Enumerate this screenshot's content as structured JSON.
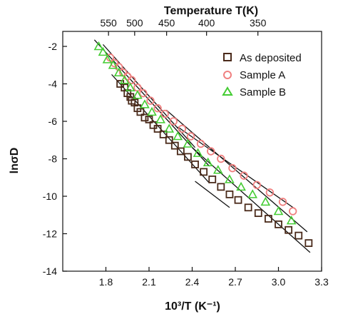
{
  "chart_data": {
    "type": "scatter",
    "title": "",
    "xlabel": "10³/T (K⁻¹)",
    "ylabel": "lnσD",
    "top_xlabel": "Temperature T(K)",
    "xlim": [
      1.5,
      3.3
    ],
    "ylim": [
      -14,
      -1.2
    ],
    "x_ticks": [
      1.8,
      2.1,
      2.4,
      2.7,
      3.0,
      3.3
    ],
    "x_tick_labels": [
      "1.8",
      "2.1",
      "2.4",
      "2.7",
      "3.0",
      "3.3"
    ],
    "y_ticks": [
      -2,
      -4,
      -6,
      -8,
      -10,
      -12,
      -14
    ],
    "y_tick_labels": [
      "-2",
      "-4",
      "-6",
      "-8",
      "-10",
      "-12",
      "-14"
    ],
    "top_ticks": [
      550,
      500,
      450,
      400,
      350
    ],
    "top_tick_labels": [
      "550",
      "500",
      "450",
      "400",
      "350"
    ],
    "legend_position": "top-right",
    "series": [
      {
        "name": "As deposited",
        "marker": "square",
        "color": "#4a2a1a",
        "x": [
          1.9,
          1.93,
          1.95,
          1.97,
          1.98,
          2.0,
          2.02,
          2.04,
          2.07,
          2.1,
          2.13,
          2.16,
          2.2,
          2.24,
          2.28,
          2.32,
          2.37,
          2.42,
          2.48,
          2.54,
          2.6,
          2.66,
          2.72,
          2.79,
          2.86,
          2.93,
          3.0,
          3.07,
          3.14,
          3.21
        ],
        "y": [
          -4.0,
          -4.2,
          -4.5,
          -4.7,
          -4.9,
          -5.0,
          -5.3,
          -5.5,
          -5.8,
          -5.9,
          -6.2,
          -6.4,
          -6.7,
          -7.0,
          -7.3,
          -7.6,
          -7.9,
          -8.3,
          -8.7,
          -9.1,
          -9.5,
          -9.9,
          -10.2,
          -10.6,
          -10.9,
          -11.2,
          -11.5,
          -11.8,
          -12.1,
          -12.5
        ]
      },
      {
        "name": "Sample A",
        "marker": "circle",
        "color": "#f08080",
        "x": [
          1.83,
          1.86,
          1.89,
          1.92,
          1.95,
          1.98,
          2.02,
          2.06,
          2.11,
          2.16,
          2.21,
          2.27,
          2.33,
          2.39,
          2.46,
          2.53,
          2.6,
          2.68,
          2.76,
          2.85,
          2.94,
          3.03,
          3.1
        ],
        "y": [
          -2.6,
          -2.9,
          -3.1,
          -3.4,
          -3.6,
          -3.8,
          -4.2,
          -4.5,
          -4.9,
          -5.3,
          -5.6,
          -6.0,
          -6.4,
          -6.8,
          -7.2,
          -7.6,
          -8.0,
          -8.5,
          -8.9,
          -9.4,
          -9.8,
          -10.3,
          -10.8
        ]
      },
      {
        "name": "Sample B",
        "marker": "triangle",
        "color": "#44cc33",
        "x": [
          1.75,
          1.78,
          1.81,
          1.85,
          1.89,
          1.93,
          1.97,
          2.02,
          2.07,
          2.12,
          2.18,
          2.24,
          2.3,
          2.37,
          2.44,
          2.51,
          2.58,
          2.66,
          2.74,
          2.82,
          2.91,
          3.0,
          3.09
        ],
        "y": [
          -2.0,
          -2.3,
          -2.7,
          -3.0,
          -3.4,
          -3.8,
          -4.2,
          -4.6,
          -5.1,
          -5.5,
          -5.9,
          -6.4,
          -6.8,
          -7.2,
          -7.7,
          -8.2,
          -8.6,
          -9.1,
          -9.5,
          -9.9,
          -10.3,
          -10.8,
          -11.3
        ]
      }
    ],
    "fit_lines": [
      {
        "x": [
          1.72,
          2.52
        ],
        "y": [
          -1.65,
          -8.4
        ]
      },
      {
        "x": [
          2.3,
          3.12
        ],
        "y": [
          -6.3,
          -10.7
        ]
      },
      {
        "x": [
          1.78,
          2.42
        ],
        "y": [
          -1.9,
          -7.4
        ]
      },
      {
        "x": [
          2.22,
          3.2
        ],
        "y": [
          -5.4,
          -11.9
        ]
      },
      {
        "x": [
          1.84,
          2.52
        ],
        "y": [
          -3.5,
          -9.3
        ]
      },
      {
        "x": [
          2.4,
          3.22
        ],
        "y": [
          -7.4,
          -13.0
        ]
      },
      {
        "x": [
          2.42,
          2.66
        ],
        "y": [
          -9.2,
          -10.6
        ]
      }
    ]
  }
}
